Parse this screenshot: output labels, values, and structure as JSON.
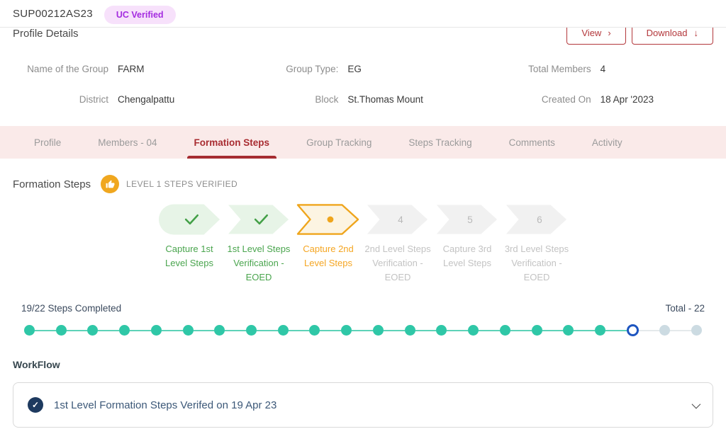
{
  "header": {
    "group_id": "SUP00212AS23",
    "badge": "UC Verified"
  },
  "profile": {
    "title": "Profile Details",
    "view_label": "View",
    "view_icon": "›",
    "download_label": "Download",
    "download_icon": "↓",
    "fields": [
      {
        "label": "Name of the Group",
        "value": "FARM"
      },
      {
        "label": "Group Type:",
        "value": "EG"
      },
      {
        "label": "Total Members",
        "value": "4"
      },
      {
        "label": "District",
        "value": "Chengalpattu"
      },
      {
        "label": "Block",
        "value": "St.Thomas Mount"
      },
      {
        "label": "Created On",
        "value": "18 Apr '2023"
      }
    ]
  },
  "tabs": [
    {
      "label": "Profile",
      "active": false
    },
    {
      "label": "Members - 04",
      "active": false
    },
    {
      "label": "Formation Steps",
      "active": true
    },
    {
      "label": "Group Tracking",
      "active": false
    },
    {
      "label": "Steps Tracking",
      "active": false
    },
    {
      "label": "Comments",
      "active": false
    },
    {
      "label": "Activity",
      "active": false
    }
  ],
  "formation": {
    "title": "Formation Steps",
    "status_icon": "thumbs-up-icon",
    "status_text": "LEVEL 1 STEPS VERIFIED",
    "steps": [
      {
        "label": "Capture 1st Level Steps",
        "state": "done",
        "shape": "start",
        "icon": "check-icon"
      },
      {
        "label": "1st Level Steps Verification - EOED",
        "state": "done",
        "shape": "mid",
        "icon": "check-icon"
      },
      {
        "label": "Capture 2nd Level Steps",
        "state": "current",
        "shape": "mid",
        "icon": "dot-icon"
      },
      {
        "label": "2nd Level Steps Verification - EOED",
        "state": "pending",
        "shape": "mid",
        "number": "4"
      },
      {
        "label": "Capture 3rd Level Steps",
        "state": "pending",
        "shape": "mid",
        "number": "5"
      },
      {
        "label": "3rd Level Steps Verification - EOED",
        "state": "pending",
        "shape": "mid",
        "number": "6"
      }
    ]
  },
  "progress": {
    "completed_text": "19/22 Steps Completed",
    "total_text": "Total - 22",
    "completed": 19,
    "current": 1,
    "total": 22
  },
  "workflow": {
    "title": "WorkFlow",
    "items": [
      {
        "text": "1st Level Formation Steps Verifed on 19 Apr 23",
        "state": "done",
        "icon": "check-icon"
      }
    ]
  },
  "colors": {
    "accent_red": "#B3373B",
    "active_tab_red": "#A82C31",
    "tab_bar_bg": "#FAEAE9",
    "badge_bg": "#F7E1FB",
    "badge_text": "#A42BE0",
    "green": "#43A047",
    "green_light": "#E7F4E7",
    "orange": "#EFA51C",
    "orange_light": "#FCF4E2",
    "pending_gray": "#F1F1F1",
    "teal": "#2FC7A7",
    "current_ring_blue": "#1D55C0",
    "pending_dot_gray": "#CCDBE2",
    "navy": "#1E3A5F",
    "workflow_text": "#3C5878"
  }
}
